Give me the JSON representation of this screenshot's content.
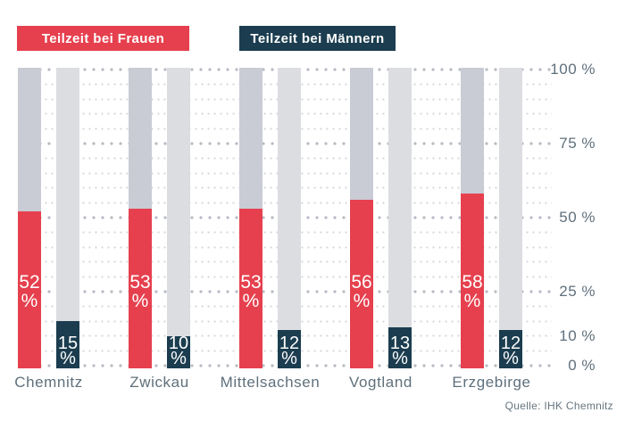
{
  "legend": {
    "items": [
      {
        "label": "Teilzeit bei Frauen",
        "color": "#e6404e"
      },
      {
        "label": "Teilzeit bei Männern",
        "color": "#1b3d4f"
      }
    ]
  },
  "chart_data": {
    "type": "bar",
    "subtype": "paired columns filled to value, gray remainder to 100%",
    "categories": [
      "Chemnitz",
      "Zwickau",
      "Mittelsachsen",
      "Vogtland",
      "Erzgebirge"
    ],
    "series": [
      {
        "name": "Teilzeit bei Frauen",
        "color": "#e6404e",
        "remainder_color": "#c9cbd5",
        "values": [
          52,
          53,
          53,
          56,
          58
        ]
      },
      {
        "name": "Teilzeit bei Männern",
        "color": "#1b3d4f",
        "remainder_color": "#dcdde1",
        "values": [
          15,
          10,
          12,
          13,
          12
        ]
      }
    ],
    "unit": "%",
    "value_label_format": "number and % on two lines inside bar",
    "ylim": [
      0,
      100
    ],
    "yticks": [
      100,
      75,
      50,
      25,
      10,
      0
    ],
    "ytick_labels": [
      "100 %",
      "75 %",
      "50 %",
      "25 %",
      "10 %",
      "0 %"
    ],
    "grid": "horizontal dotted lines: small dots every 5%, large dots every 25%",
    "legend_position": "top-left",
    "source": "Quelle: IHK Chemnitz"
  },
  "source": "Quelle: IHK Chemnitz",
  "colors": {
    "background": "#ffffff",
    "red": "#e6404e",
    "navy": "#1b3d4f",
    "women_remainder": "#c9cbd5",
    "men_remainder": "#dcdde1",
    "grid_minor": "#d3d5db",
    "grid_major": "#b7bbc4",
    "axis_text": "#5f707c",
    "value_text": "#ffffff"
  }
}
